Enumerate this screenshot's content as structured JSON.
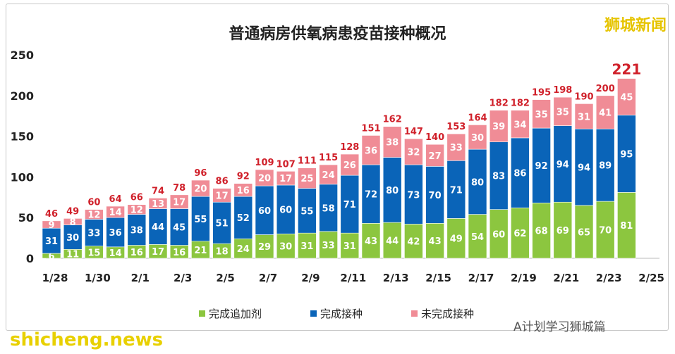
{
  "logo": "狮城新闻",
  "watermark": "shicheng.news",
  "wechat_watermark": "A计划学习狮城篇",
  "chart_data": {
    "type": "bar",
    "stacked": true,
    "title": "普通病房供氧病患疫苗接种概况",
    "xlabel": "",
    "ylabel": "",
    "ylim": [
      0,
      250
    ],
    "yticks": [
      0,
      50,
      100,
      150,
      200,
      250
    ],
    "grid": false,
    "legend": "bottom",
    "categories": [
      "1/28",
      "1/29",
      "1/30",
      "1/31",
      "2/1",
      "2/2",
      "2/3",
      "2/4",
      "2/5",
      "2/6",
      "2/7",
      "2/8",
      "2/9",
      "2/10",
      "2/11",
      "2/12",
      "2/13",
      "2/14",
      "2/15",
      "2/16",
      "2/17",
      "2/18",
      "2/19",
      "2/20",
      "2/21",
      "2/22",
      "2/23",
      "2/24"
    ],
    "xtick_labels": [
      "1/28",
      "1/30",
      "2/1",
      "2/3",
      "2/5",
      "2/7",
      "2/9",
      "2/11",
      "2/13",
      "2/15",
      "2/17",
      "2/19",
      "2/21",
      "2/23",
      "2/25"
    ],
    "series": [
      {
        "name": "完成追加剂",
        "color": "#8cc63f",
        "values": [
          6,
          11,
          15,
          14,
          16,
          17,
          16,
          21,
          18,
          24,
          29,
          30,
          31,
          33,
          31,
          43,
          44,
          42,
          43,
          49,
          54,
          60,
          62,
          68,
          69,
          65,
          70,
          81
        ]
      },
      {
        "name": "完成接种",
        "color": "#0a64b8",
        "values": [
          31,
          30,
          33,
          36,
          38,
          44,
          45,
          55,
          51,
          52,
          60,
          60,
          55,
          58,
          71,
          72,
          80,
          73,
          70,
          71,
          80,
          83,
          86,
          92,
          94,
          94,
          89,
          95
        ]
      },
      {
        "name": "未完成接种",
        "color": "#f08c96",
        "values": [
          9,
          8,
          12,
          14,
          12,
          13,
          17,
          20,
          17,
          16,
          20,
          17,
          25,
          24,
          26,
          36,
          38,
          32,
          27,
          33,
          30,
          39,
          34,
          35,
          35,
          31,
          41,
          45
        ]
      }
    ],
    "totals": [
      46,
      49,
      60,
      64,
      66,
      74,
      78,
      96,
      86,
      92,
      109,
      107,
      111,
      115,
      128,
      151,
      162,
      147,
      140,
      153,
      164,
      182,
      182,
      195,
      198,
      190,
      200,
      221
    ],
    "total_label_color": "#d0202a"
  }
}
